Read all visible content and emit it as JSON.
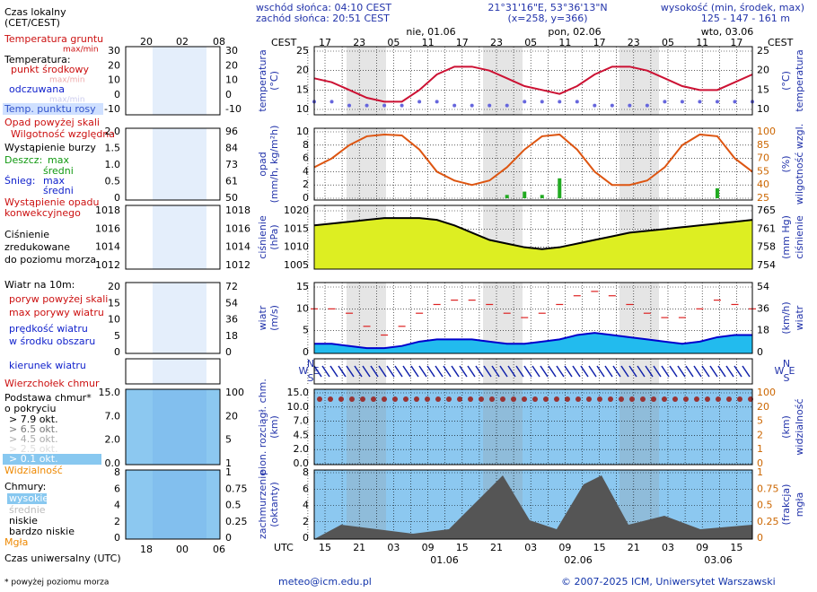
{
  "header": {
    "sunrise": "wschód słońca: 04:10 CEST",
    "sunset": "zachód słońca: 20:51 CEST",
    "coords": "21°31'16\"E, 53°36'13\"N",
    "grid_xy": "(x=258, y=366)",
    "elevation_title": "wysokość (min, środek, max)",
    "elevation_values": "125 - 147 - 161 m"
  },
  "top_axis": {
    "zone_left": "CEST",
    "zone_right": "CEST",
    "hours": [
      "17",
      "23",
      "05",
      "11",
      "17",
      "23",
      "05",
      "11",
      "17",
      "23",
      "05",
      "11",
      "17"
    ],
    "dates": [
      "nie, 01.06",
      "pon, 02.06",
      "wto, 03.06"
    ]
  },
  "bottom_axis": {
    "zone": "UTC",
    "hours": [
      "15",
      "21",
      "03",
      "09",
      "15",
      "21",
      "03",
      "09",
      "15",
      "21",
      "03",
      "09",
      "15"
    ],
    "dates": [
      "01.06",
      "02.06",
      "03.06"
    ]
  },
  "panels": [
    {
      "label": [
        "temperatura",
        "(°C)"
      ],
      "label_right": [
        "(°C)",
        "temperatura"
      ],
      "yticks": [
        10,
        15,
        20,
        25
      ],
      "y2ticks": [
        10,
        15,
        20,
        25
      ],
      "series": [
        {
          "style": "line",
          "color": "#cc1133",
          "values": [
            18,
            17,
            15,
            13,
            12,
            12,
            15,
            19,
            21,
            21,
            20,
            18,
            16,
            15,
            14,
            16,
            19,
            21,
            21,
            20,
            18,
            16,
            15,
            15,
            17,
            19
          ]
        },
        {
          "style": "dots",
          "color": "#6666dd",
          "values": [
            12,
            12,
            11,
            11,
            11,
            11,
            12,
            12,
            11,
            11,
            11,
            11,
            12,
            12,
            12,
            12,
            11,
            11,
            11,
            11,
            12,
            12,
            12,
            12,
            12,
            12
          ]
        }
      ]
    },
    {
      "label": [
        "opad",
        "(mm/h, kg/m²h)"
      ],
      "label_right": [
        "(%)",
        "wilgotność wzgl."
      ],
      "yticks": [
        0,
        2,
        4,
        6,
        8,
        10
      ],
      "y2ticks": [
        25,
        40,
        55,
        70,
        85,
        100
      ],
      "series": [
        {
          "style": "bars",
          "color": "#22aa22",
          "values": [
            0,
            0,
            0,
            0,
            0,
            0,
            0,
            0,
            0,
            0,
            0,
            0.5,
            1,
            0.5,
            3,
            0,
            0,
            0,
            0,
            0,
            0,
            0,
            0,
            1.5,
            0,
            0
          ]
        },
        {
          "style": "line",
          "color": "#dd5511",
          "axis": "y2",
          "values": [
            60,
            70,
            85,
            95,
            97,
            96,
            80,
            55,
            45,
            40,
            45,
            60,
            80,
            95,
            97,
            80,
            55,
            40,
            40,
            45,
            60,
            85,
            97,
            95,
            70,
            55
          ]
        }
      ]
    },
    {
      "label": [
        "ciśnienie",
        "(hPa)"
      ],
      "label_right": [
        "(mm Hg)",
        "ciśnienie"
      ],
      "yticks": [
        1005,
        1010,
        1015,
        1020
      ],
      "y2ticks": [
        754,
        758,
        761,
        765
      ],
      "series": [
        {
          "style": "area",
          "color": "#000000",
          "fill": "#ddee22",
          "values": [
            1016,
            1016.5,
            1017,
            1017.5,
            1018,
            1018,
            1018,
            1017.5,
            1016,
            1014,
            1012,
            1011,
            1010,
            1009.5,
            1010,
            1011,
            1012,
            1013,
            1014,
            1014.5,
            1015,
            1015.5,
            1016,
            1016.5,
            1017,
            1017.5
          ]
        }
      ]
    },
    {
      "label": [
        "wiatr",
        "(m/s)"
      ],
      "label_right": [
        "(km/h)",
        "wiatr"
      ],
      "yticks": [
        0,
        5,
        10,
        15
      ],
      "y2ticks": [
        0,
        18,
        36,
        54
      ],
      "series": [
        {
          "style": "area",
          "color": "#0000cc",
          "fill": "#22bbee",
          "values": [
            2,
            2,
            1.5,
            1,
            1,
            1.5,
            2.5,
            3,
            3,
            3,
            2.5,
            2,
            2,
            2.5,
            3,
            4,
            4.5,
            4,
            3.5,
            3,
            2.5,
            2,
            2.5,
            3.5,
            4,
            4
          ]
        },
        {
          "style": "dashes",
          "color": "#dd2222",
          "values": [
            10,
            10,
            9,
            6,
            4,
            6,
            9,
            11,
            12,
            12,
            11,
            9,
            8,
            9,
            11,
            13,
            14,
            13,
            11,
            9,
            8,
            8,
            10,
            12,
            11,
            10
          ]
        }
      ]
    },
    {
      "label": [],
      "label_right": [],
      "compass": [
        "W",
        "N",
        "S",
        "E"
      ],
      "yticks": [],
      "y2ticks": [],
      "series": []
    },
    {
      "label": [
        "pion. rozciągł. chm.",
        "(km)"
      ],
      "label_right": [
        "(km)",
        "widzialność"
      ],
      "yticks": [
        {
          "value": 0,
          "label": "0.0"
        },
        {
          "value": 2,
          "label": "2.0"
        },
        {
          "value": 4.5,
          "label": "4.5"
        },
        {
          "value": 7,
          "label": "7.0"
        },
        {
          "value": 10,
          "label": "10.0"
        },
        {
          "value": 15,
          "label": "15.0"
        }
      ],
      "y2ticks": [
        0,
        1,
        2,
        5,
        20,
        100
      ],
      "series": []
    },
    {
      "label": [
        "zachmurzenie",
        "(oktanty)"
      ],
      "label_right": [
        "(frakcja)",
        "mgła"
      ],
      "yticks": [
        0,
        2,
        4,
        6,
        8
      ],
      "y2ticks": [
        0,
        0.25,
        0.5,
        0.75,
        1
      ],
      "series": []
    }
  ],
  "legend": {
    "local_time": "Czas lokalny",
    "local_zone": "(CET/CEST)",
    "mini_top_hours": [
      "20",
      "02",
      "08"
    ],
    "ground_temp": "Temperatura gruntu",
    "ground_maxmin": "max/min",
    "temp": "Temperatura:",
    "mid": "punkt środkowy",
    "mid_maxmin": "max/min",
    "felt": "odczuwana",
    "felt_maxmin": "max/min",
    "dew": "Temp. punktu rosy",
    "precip_over": "Opad powyżej skali",
    "humidity": "Wilgotność względna",
    "storm": "Wystąpienie burzy",
    "rain": "Deszcz:",
    "rain_max": "max",
    "rain_mean": "średni",
    "snow": "Śnieg:",
    "snow_max": "max",
    "snow_mean": "średni",
    "conv1": "Wystąpienie opadu",
    "conv2": "konwekcyjnego",
    "press1": "Ciśnienie",
    "press2": "zredukowane",
    "press3": "do poziomu morza",
    "wind": "Wiatr na 10m:",
    "gust_over": "poryw powyżej skali",
    "gust_max": "max porywy wiatru",
    "wind_speed": "prędkość wiatru",
    "wind_center": "w środku obszaru",
    "wind_dir": "kierunek wiatru",
    "cloud_top": "Wierzchołek chmur",
    "base1": "Podstawa chmur*",
    "base2": "o pokryciu",
    "o79": "> 7.9 okt.",
    "o65": "> 6.5 okt.",
    "o45": "> 4.5 okt.",
    "o25": "> 2.5 okt.",
    "o01": "> 0.1 okt.",
    "visibility": "Widzialność",
    "clouds": "Chmury:",
    "high": "wysokie",
    "medium": "średnie",
    "low": "niskie",
    "vlow": "bardzo niskie",
    "fog": "Mgła",
    "utc": "Czas uniwersalny (UTC)",
    "mini_bottom_hours": [
      "18",
      "00",
      "06"
    ],
    "mini_ticks": [
      {
        "left": [
          "30",
          "20",
          "10",
          "0",
          "-10"
        ],
        "right": [
          "30",
          "20",
          "10",
          "0",
          "-10"
        ]
      },
      {
        "left": [
          "2.0",
          "1.5",
          "1.0",
          "0.5",
          "0"
        ],
        "right": [
          "96",
          "84",
          "73",
          "61",
          "50"
        ]
      },
      {
        "left": [
          "1018",
          "1016",
          "1014",
          "1012"
        ],
        "right": [
          "1018",
          "1016",
          "1014",
          "1012"
        ]
      },
      {
        "left": [
          "20",
          "15",
          "10",
          "5",
          "0"
        ],
        "right": [
          "72",
          "54",
          "36",
          "18",
          "0"
        ]
      },
      {
        "left": [],
        "right": []
      },
      {
        "left": [
          "15.0",
          "7.0",
          "2.0",
          "0.0"
        ],
        "right": [
          "100",
          "20",
          "5",
          "1"
        ]
      },
      {
        "left": [
          "8",
          "6",
          "4",
          "2",
          "0"
        ],
        "right": [
          "1",
          "0.75",
          "0.5",
          "0.25",
          "0"
        ]
      }
    ]
  },
  "footer": {
    "note": "* powyżej poziomu morza",
    "email": "meteo@icm.edu.pl",
    "copyright": "© 2007-2025 ICM, Uniwersytet Warszawski"
  }
}
